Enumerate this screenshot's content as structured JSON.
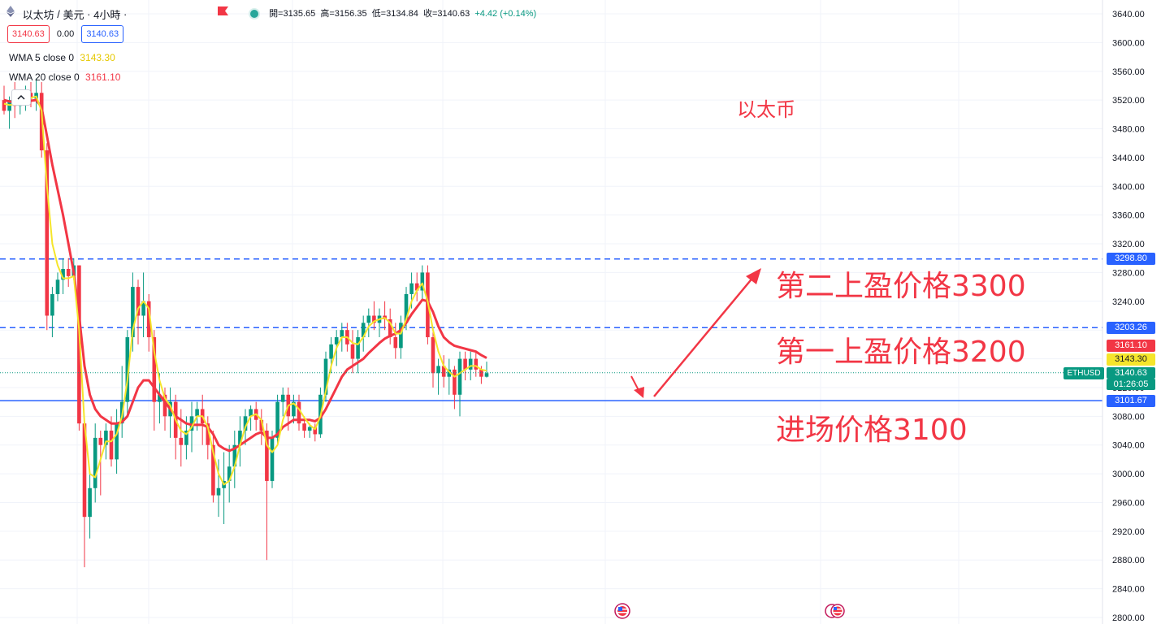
{
  "header": {
    "symbol": "以太坊",
    "quote": "美元",
    "interval": "4小時",
    "open_label": "開=3135.65",
    "high_label": "高=3156.35",
    "low_label": "低=3134.84",
    "close_label": "收=3140.63",
    "change_label": "+4.42 (+0.14%)"
  },
  "trade": {
    "sell": "3140.63",
    "spread": "0.00",
    "buy": "3140.63"
  },
  "indicators": [
    {
      "label": "WMA 5 close 0",
      "value": "3143.30",
      "color": "#f5e52b"
    },
    {
      "label": "WMA 20 close 0",
      "value": "3161.10",
      "color": "#f23645"
    }
  ],
  "notes": {
    "title": "以太币",
    "tp2": "第二上盈价格3300",
    "tp1": "第一上盈价格3200",
    "entry": "进场价格3100"
  },
  "axis_tags": {
    "tp2": "3298.80",
    "tp1": "3203.26",
    "wma20": "3161.10",
    "wma5": "3143.30",
    "last": "3140.63",
    "countdown": "01:26:05",
    "entry": "3101.67",
    "symbol_tag": "ETHUSD"
  },
  "colors": {
    "up": "#089981",
    "down": "#f23645",
    "wma5": "#f5e52b",
    "wma20": "#f23645",
    "level_line": "#2962ff"
  },
  "chart_data": {
    "type": "candlestick",
    "ylim": [
      2800,
      3640
    ],
    "y_ticks": [
      "3640.00",
      "3600.00",
      "3560.00",
      "3520.00",
      "3480.00",
      "3440.00",
      "3400.00",
      "3360.00",
      "3320.00",
      "3280.00",
      "3240.00",
      "3200.00",
      "3160.00",
      "3120.00",
      "3080.00",
      "3040.00",
      "3000.00",
      "2960.00",
      "2920.00",
      "2880.00",
      "2840.00",
      "2800.00"
    ],
    "candles": [
      [
        3520,
        3540,
        3500,
        3505
      ],
      [
        3505,
        3525,
        3480,
        3520
      ],
      [
        3520,
        3545,
        3495,
        3512
      ],
      [
        3512,
        3530,
        3500,
        3518
      ],
      [
        3518,
        3540,
        3505,
        3530
      ],
      [
        3530,
        3545,
        3510,
        3522
      ],
      [
        3522,
        3550,
        3505,
        3530
      ],
      [
        3530,
        3545,
        3440,
        3450
      ],
      [
        3450,
        3460,
        3200,
        3220
      ],
      [
        3220,
        3260,
        3190,
        3250
      ],
      [
        3250,
        3280,
        3240,
        3270
      ],
      [
        3270,
        3300,
        3250,
        3285
      ],
      [
        3285,
        3300,
        3260,
        3275
      ],
      [
        3275,
        3300,
        3270,
        3290
      ],
      [
        3290,
        3290,
        3060,
        3070
      ],
      [
        3070,
        3080,
        2870,
        2940
      ],
      [
        2940,
        3000,
        2910,
        2980
      ],
      [
        2980,
        3070,
        2960,
        3050
      ],
      [
        3050,
        3060,
        2970,
        3040
      ],
      [
        3040,
        3070,
        3020,
        3060
      ],
      [
        3060,
        3080,
        3010,
        3020
      ],
      [
        3020,
        3090,
        3000,
        3070
      ],
      [
        3070,
        3150,
        3050,
        3100
      ],
      [
        3100,
        3200,
        3080,
        3190
      ],
      [
        3190,
        3280,
        3170,
        3260
      ],
      [
        3260,
        3270,
        3180,
        3220
      ],
      [
        3220,
        3280,
        3190,
        3240
      ],
      [
        3240,
        3250,
        3170,
        3190
      ],
      [
        3190,
        3200,
        3060,
        3100
      ],
      [
        3100,
        3140,
        3070,
        3110
      ],
      [
        3110,
        3120,
        3060,
        3080
      ],
      [
        3080,
        3120,
        3050,
        3100
      ],
      [
        3100,
        3110,
        3020,
        3050
      ],
      [
        3050,
        3090,
        3010,
        3040
      ],
      [
        3040,
        3080,
        3020,
        3060
      ],
      [
        3060,
        3100,
        3030,
        3080
      ],
      [
        3080,
        3100,
        3060,
        3090
      ],
      [
        3090,
        3110,
        3040,
        3070
      ],
      [
        3070,
        3080,
        3020,
        3040
      ],
      [
        3040,
        3060,
        2960,
        2970
      ],
      [
        2970,
        3020,
        2940,
        2980
      ],
      [
        2980,
        3030,
        2930,
        2990
      ],
      [
        2990,
        3040,
        2960,
        3010
      ],
      [
        3010,
        3060,
        2980,
        3040
      ],
      [
        3040,
        3080,
        3010,
        3060
      ],
      [
        3060,
        3090,
        3040,
        3080
      ],
      [
        3080,
        3095,
        3060,
        3090
      ],
      [
        3090,
        3100,
        3060,
        3075
      ],
      [
        3075,
        3090,
        3040,
        3060
      ],
      [
        3060,
        3070,
        2880,
        2990
      ],
      [
        2990,
        3060,
        2980,
        3050
      ],
      [
        3050,
        3110,
        3040,
        3100
      ],
      [
        3100,
        3120,
        3080,
        3110
      ],
      [
        3110,
        3120,
        3060,
        3080
      ],
      [
        3080,
        3110,
        3070,
        3100
      ],
      [
        3100,
        3110,
        3060,
        3070
      ],
      [
        3070,
        3080,
        3050,
        3060
      ],
      [
        3060,
        3070,
        3050,
        3065
      ],
      [
        3065,
        3070,
        3045,
        3055
      ],
      [
        3055,
        3120,
        3050,
        3110
      ],
      [
        3110,
        3170,
        3100,
        3160
      ],
      [
        3160,
        3190,
        3140,
        3180
      ],
      [
        3180,
        3200,
        3150,
        3190
      ],
      [
        3190,
        3210,
        3170,
        3200
      ],
      [
        3200,
        3210,
        3170,
        3180
      ],
      [
        3180,
        3200,
        3140,
        3160
      ],
      [
        3160,
        3200,
        3140,
        3190
      ],
      [
        3190,
        3220,
        3170,
        3210
      ],
      [
        3210,
        3230,
        3190,
        3220
      ],
      [
        3220,
        3240,
        3200,
        3210
      ],
      [
        3210,
        3230,
        3190,
        3220
      ],
      [
        3220,
        3240,
        3200,
        3215
      ],
      [
        3215,
        3230,
        3180,
        3190
      ],
      [
        3190,
        3210,
        3160,
        3175
      ],
      [
        3175,
        3220,
        3160,
        3210
      ],
      [
        3210,
        3260,
        3200,
        3250
      ],
      [
        3250,
        3280,
        3230,
        3265
      ],
      [
        3265,
        3280,
        3240,
        3255
      ],
      [
        3255,
        3290,
        3240,
        3280
      ],
      [
        3280,
        3290,
        3180,
        3190
      ],
      [
        3190,
        3200,
        3120,
        3140
      ],
      [
        3140,
        3160,
        3110,
        3150
      ],
      [
        3150,
        3165,
        3120,
        3135
      ],
      [
        3135,
        3160,
        3110,
        3145
      ],
      [
        3145,
        3150,
        3090,
        3110
      ],
      [
        3110,
        3170,
        3080,
        3160
      ],
      [
        3160,
        3170,
        3130,
        3145
      ],
      [
        3145,
        3170,
        3130,
        3160
      ],
      [
        3160,
        3170,
        3135,
        3145
      ],
      [
        3145,
        3150,
        3125,
        3135
      ],
      [
        3135,
        3156,
        3134,
        3140
      ]
    ],
    "wma5": [
      3515,
      3513,
      3514,
      3516,
      3522,
      3523,
      3525,
      3505,
      3400,
      3320,
      3290,
      3272,
      3272,
      3275,
      3200,
      3070,
      3000,
      2995,
      3020,
      3045,
      3045,
      3055,
      3080,
      3130,
      3200,
      3230,
      3240,
      3230,
      3170,
      3130,
      3105,
      3095,
      3075,
      3060,
      3055,
      3065,
      3080,
      3080,
      3065,
      3030,
      3000,
      2985,
      2990,
      3010,
      3040,
      3065,
      3080,
      3083,
      3075,
      3040,
      3030,
      3040,
      3075,
      3095,
      3098,
      3090,
      3078,
      3068,
      3062,
      3080,
      3115,
      3150,
      3175,
      3190,
      3190,
      3182,
      3180,
      3190,
      3205,
      3212,
      3215,
      3217,
      3210,
      3195,
      3195,
      3215,
      3240,
      3255,
      3265,
      3240,
      3200,
      3170,
      3150,
      3142,
      3135,
      3140,
      3145,
      3150,
      3150,
      3145,
      3143.3
    ],
    "wma20": [
      3520,
      3518,
      3517,
      3517,
      3518,
      3519,
      3520,
      3510,
      3470,
      3430,
      3395,
      3360,
      3320,
      3280,
      3220,
      3150,
      3110,
      3090,
      3080,
      3075,
      3070,
      3070,
      3072,
      3080,
      3100,
      3120,
      3130,
      3130,
      3120,
      3110,
      3100,
      3090,
      3080,
      3075,
      3070,
      3068,
      3068,
      3068,
      3065,
      3055,
      3040,
      3035,
      3032,
      3035,
      3040,
      3045,
      3050,
      3055,
      3058,
      3050,
      3050,
      3055,
      3065,
      3070,
      3075,
      3075,
      3075,
      3075,
      3073,
      3078,
      3090,
      3105,
      3120,
      3135,
      3145,
      3150,
      3155,
      3160,
      3168,
      3175,
      3182,
      3188,
      3192,
      3195,
      3200,
      3210,
      3222,
      3232,
      3242,
      3240,
      3225,
      3205,
      3190,
      3183,
      3178,
      3176,
      3174,
      3172,
      3170,
      3165,
      3161.1
    ],
    "levels": [
      3298.8,
      3203.26,
      3101.67
    ],
    "last_price": 3140.63
  }
}
